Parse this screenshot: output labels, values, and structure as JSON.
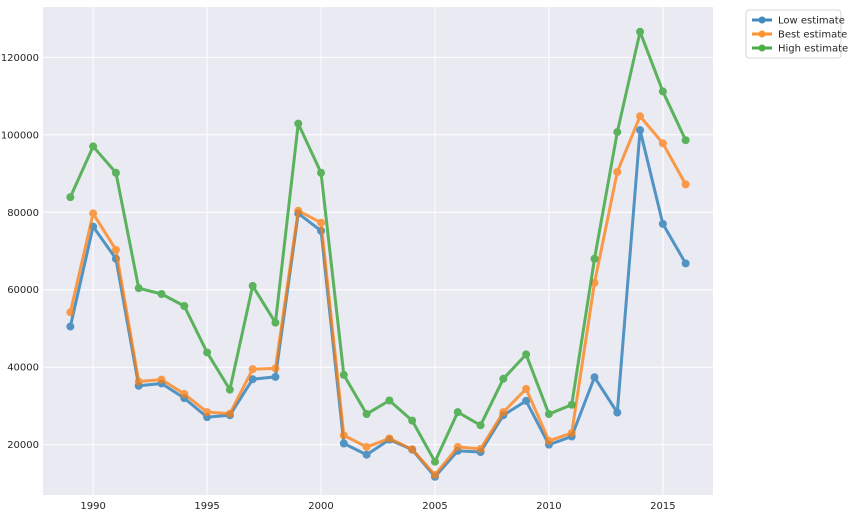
{
  "chart_data": {
    "type": "line",
    "title": "",
    "xlabel": "",
    "ylabel": "",
    "xlim": [
      1987.8,
      2017.2
    ],
    "ylim": [
      7000,
      133000
    ],
    "x_ticks": [
      1990,
      1995,
      2000,
      2005,
      2010,
      2015
    ],
    "y_ticks": [
      20000,
      40000,
      60000,
      80000,
      100000,
      120000
    ],
    "grid": true,
    "legend_position": "outside-top-right",
    "x": [
      1989,
      1990,
      1991,
      1992,
      1993,
      1994,
      1995,
      1996,
      1997,
      1998,
      1999,
      2000,
      2001,
      2002,
      2003,
      2004,
      2005,
      2006,
      2007,
      2008,
      2009,
      2010,
      2011,
      2012,
      2013,
      2014,
      2015,
      2016
    ],
    "series": [
      {
        "name": "Low estimate",
        "color": "#1f77b4",
        "values": [
          50500,
          76300,
          68000,
          35200,
          35800,
          32000,
          27100,
          27600,
          36900,
          37500,
          79700,
          75200,
          20300,
          17400,
          21300,
          18700,
          11700,
          18400,
          18100,
          27600,
          31300,
          20000,
          22100,
          37400,
          28300,
          101200,
          77000,
          66800
        ]
      },
      {
        "name": "Best estimate",
        "color": "#ff7f0e",
        "values": [
          54200,
          79700,
          70300,
          36300,
          36800,
          33100,
          28400,
          28000,
          39500,
          39700,
          80400,
          77300,
          22400,
          19400,
          21600,
          18800,
          12200,
          19400,
          18900,
          28400,
          34400,
          21000,
          23000,
          61800,
          90400,
          104800,
          97800,
          87200
        ]
      },
      {
        "name": "High estimate",
        "color": "#2ca02c",
        "values": [
          83900,
          97000,
          90200,
          60400,
          58900,
          55800,
          43800,
          34200,
          61000,
          51500,
          102900,
          90200,
          38000,
          27900,
          31400,
          26200,
          15600,
          28400,
          25000,
          37000,
          43300,
          27900,
          30300,
          68000,
          100700,
          126600,
          111200,
          98600
        ]
      }
    ]
  }
}
